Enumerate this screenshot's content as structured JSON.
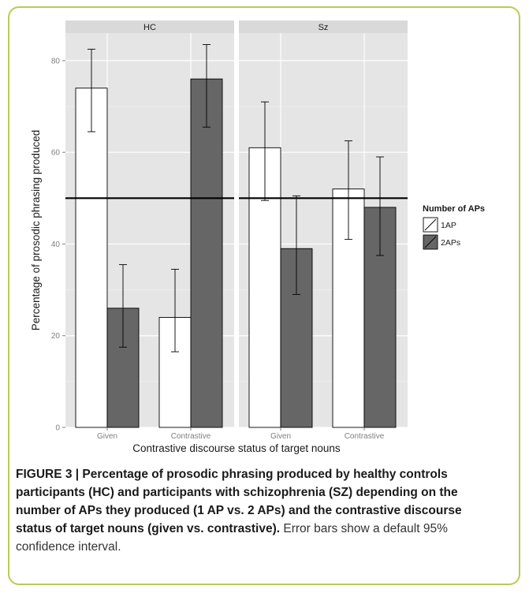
{
  "chart_data": {
    "type": "bar",
    "facets": [
      "HC",
      "Sz"
    ],
    "categories": [
      "Given",
      "Contrastive"
    ],
    "xlabel": "Contrastive discourse status of target nouns",
    "ylabel": "Percentage of prosodic phrasing produced",
    "ylim": [
      0,
      86
    ],
    "yticks": [
      0,
      20,
      40,
      60,
      80
    ],
    "reference_line": 50,
    "legend": {
      "title": "Number of APs",
      "placement": "right"
    },
    "series": [
      {
        "name": "1AP",
        "color": "#ffffff",
        "values": {
          "HC": [
            74,
            24
          ],
          "Sz": [
            61,
            52
          ]
        },
        "ci_low": {
          "HC": [
            64.5,
            16.5
          ],
          "Sz": [
            49.5,
            41
          ]
        },
        "ci_high": {
          "HC": [
            82.5,
            34.5
          ],
          "Sz": [
            71,
            62.5
          ]
        }
      },
      {
        "name": "2APs",
        "color": "#666666",
        "values": {
          "HC": [
            26,
            76
          ],
          "Sz": [
            39,
            48
          ]
        },
        "ci_low": {
          "HC": [
            17.5,
            65.5
          ],
          "Sz": [
            29,
            37.5
          ]
        },
        "ci_high": {
          "HC": [
            35.5,
            83.5
          ],
          "Sz": [
            50.5,
            59
          ]
        }
      }
    ],
    "grid": true,
    "panel_background": "#e5e5e5",
    "strip_background": "#d9d9d9"
  },
  "caption": {
    "bold": "FIGURE 3 | Percentage of prosodic phrasing produced by healthy controls participants (HC) and participants with schizophrenia (SZ) depending on the number of APs they produced (1 AP vs. 2 APs) and the contrastive discourse status of target nouns (given vs. contrastive).",
    "rest": " Error bars show a default 95% confidence interval."
  },
  "accent_color": "#b6ce52"
}
